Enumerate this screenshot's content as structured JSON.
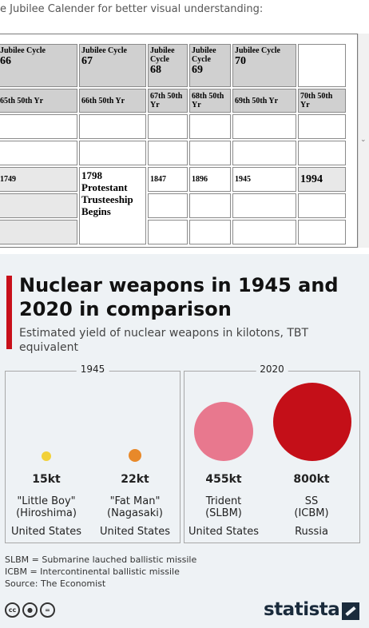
{
  "caption": "e Jubilee Calender for better visual understanding:",
  "table": {
    "header": [
      {
        "label": "Jubilee Cycle",
        "num": "66"
      },
      {
        "label": "Jubilee Cycle",
        "num": "67"
      },
      {
        "label": "Jubilee Cycle",
        "num": "68"
      },
      {
        "label": "Jubilee Cycle",
        "num": "69"
      },
      {
        "label": "Jubilee Cycle",
        "num": "70"
      }
    ],
    "sub": [
      "65th 50th Yr",
      "66th 50th Yr",
      "67th 50th Yr",
      "68th 50th Yr",
      "69th 50th Yr",
      "70th 50th Yr"
    ],
    "years": [
      "1749",
      "1798",
      "1847",
      "1896",
      "1945",
      "1994"
    ],
    "event": "Protestant Trusteeship Begins"
  },
  "infographic": {
    "title": "Nuclear weapons in 1945 and 2020 in comparison",
    "subtitle": "Estimated yield of nuclear weapons in kilotons, TBT equivalent",
    "panels": [
      {
        "year": "1945",
        "weapons": [
          {
            "yield": "15kt",
            "name_line1": "\"Little Boy\"",
            "name_line2": "(Hiroshima)",
            "country": "United States",
            "color": "#f2d13a"
          },
          {
            "yield": "22kt",
            "name_line1": "\"Fat Man\"",
            "name_line2": "(Nagasaki)",
            "country": "United States",
            "color": "#e8892a"
          }
        ]
      },
      {
        "year": "2020",
        "weapons": [
          {
            "yield": "455kt",
            "name_line1": "Trident",
            "name_line2": "(SLBM)",
            "country": "United States",
            "color": "#e8788e"
          },
          {
            "yield": "800kt",
            "name_line1": "SS",
            "name_line2": "(ICBM)",
            "country": "Russia",
            "color": "#c40f18"
          }
        ]
      }
    ],
    "notes": [
      "SLBM = Submarine lauched ballistic missile",
      "ICBM = Intercontinental ballistic missile",
      "Source: The Economist"
    ],
    "license_icons": [
      "cc-icon",
      "attribution-icon",
      "equal-icon"
    ],
    "brand": "statista"
  }
}
